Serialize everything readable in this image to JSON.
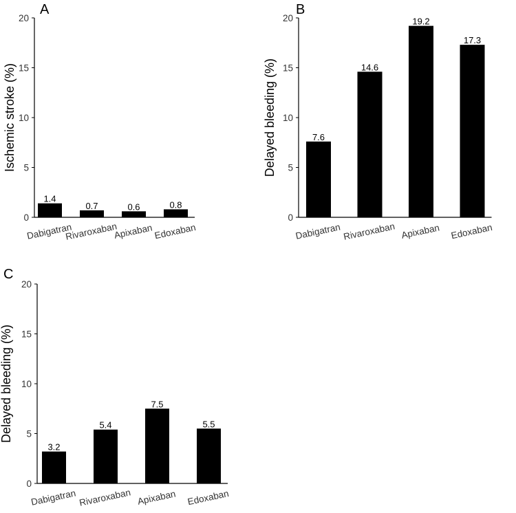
{
  "chart_data": [
    {
      "type": "bar",
      "panel": "A",
      "title": "",
      "xlabel": "",
      "ylabel": "Ischemic stroke (%)",
      "categories": [
        "Dabigatran",
        "Rivaroxaban",
        "Apixaban",
        "Edoxaban"
      ],
      "values": [
        1.4,
        0.7,
        0.6,
        0.8
      ],
      "value_labels": [
        "1.4",
        "0.7",
        "0.6",
        "0.8"
      ],
      "ylim": [
        0,
        20
      ],
      "yticks": [
        0,
        5,
        10,
        15,
        20
      ],
      "ytick_labels": [
        "0",
        "5",
        "10",
        "15",
        "20"
      ],
      "bar_color": "#000000",
      "grid": false
    },
    {
      "type": "bar",
      "panel": "B",
      "title": "",
      "xlabel": "",
      "ylabel": "Delayed bleeding (%)",
      "categories": [
        "Dabigatran",
        "Rivaroxaban",
        "Apixaban",
        "Edoxaban"
      ],
      "values": [
        7.6,
        14.6,
        19.2,
        17.3
      ],
      "value_labels": [
        "7.6",
        "14.6",
        "19.2",
        "17.3"
      ],
      "ylim": [
        0,
        20
      ],
      "yticks": [
        0,
        5,
        10,
        15,
        20
      ],
      "ytick_labels": [
        "0",
        "5",
        "10",
        "15",
        "20"
      ],
      "bar_color": "#000000",
      "grid": false
    },
    {
      "type": "bar",
      "panel": "C",
      "title": "",
      "xlabel": "",
      "ylabel": "Delayed bleeding (%)",
      "categories": [
        "Dabigatran",
        "Rivaroxaban",
        "Apixaban",
        "Edoxaban"
      ],
      "values": [
        3.2,
        5.4,
        7.5,
        5.5
      ],
      "value_labels": [
        "3.2",
        "5.4",
        "7.5",
        "5.5"
      ],
      "ylim": [
        0,
        20
      ],
      "yticks": [
        0,
        5,
        10,
        15,
        20
      ],
      "ytick_labels": [
        "0",
        "5",
        "10",
        "15",
        "20"
      ],
      "bar_color": "#000000",
      "grid": false
    }
  ]
}
